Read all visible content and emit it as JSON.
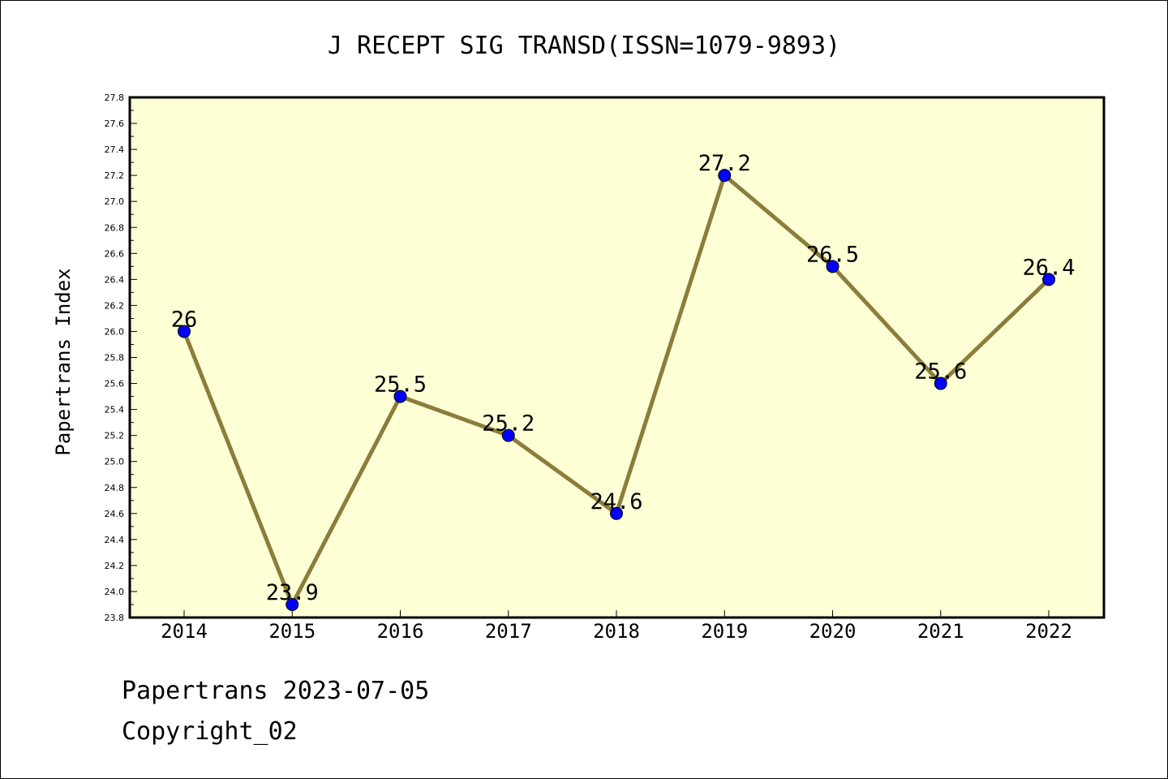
{
  "chart_data": {
    "type": "line",
    "title": "J RECEPT SIG TRANSD(ISSN=1079-9893)",
    "ylabel": "Papertrans Index",
    "xlabel": "",
    "categories": [
      "2014",
      "2015",
      "2016",
      "2017",
      "2018",
      "2019",
      "2020",
      "2021",
      "2022"
    ],
    "values": [
      26,
      23.9,
      25.5,
      25.2,
      24.6,
      27.2,
      26.5,
      25.6,
      26.4
    ],
    "data_labels": [
      "26",
      "23.9",
      "25.5",
      "25.2",
      "24.6",
      "27.2",
      "26.5",
      "25.6",
      "26.4"
    ],
    "ylim": [
      23.8,
      27.8
    ],
    "ytick_labels": [
      "23.8",
      "24.0",
      "24.2",
      "24.4",
      "24.6",
      "24.8",
      "25.0",
      "25.2",
      "25.4",
      "25.6",
      "25.8",
      "26.0",
      "26.2",
      "26.4",
      "26.6",
      "26.8",
      "27.0",
      "27.2",
      "27.4",
      "27.6",
      "27.8"
    ],
    "grid": false,
    "legend": "none",
    "colors": {
      "plot_background": "#ffffd6",
      "line": "#8b7d3a",
      "marker": "#0000ff",
      "axis": "#000000"
    }
  },
  "footer": {
    "line1": "Papertrans 2023-07-05",
    "line2": "Copyright_02"
  }
}
